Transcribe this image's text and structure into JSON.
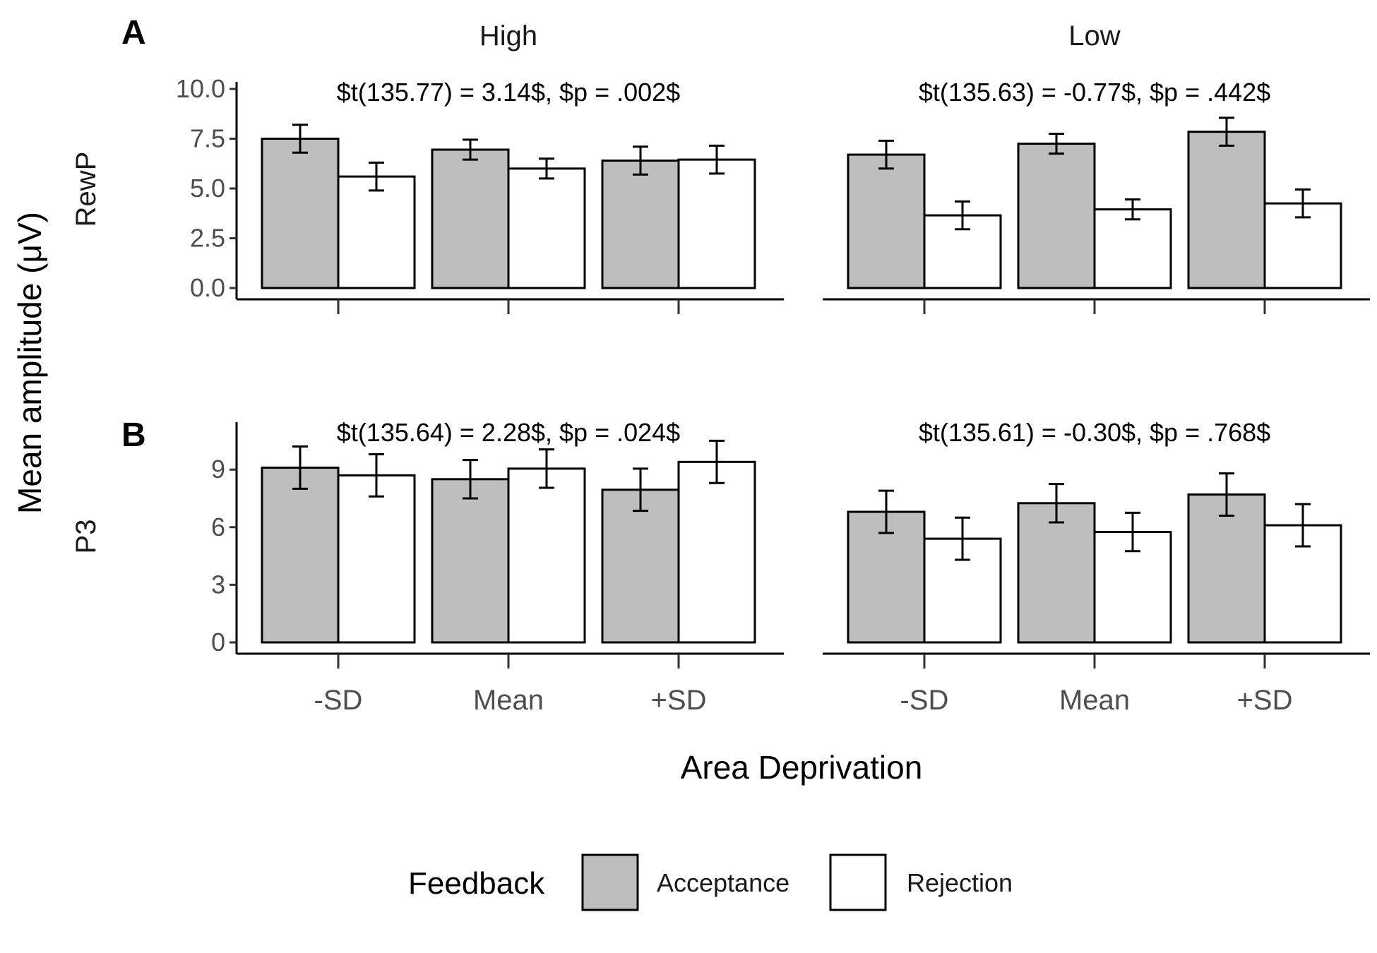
{
  "chart_data": {
    "type": "bar",
    "facets_columns": [
      "High",
      "Low"
    ],
    "facets_rows": [
      {
        "letter": "A",
        "name": "RewP",
        "ylim": [
          0,
          10
        ],
        "ticks": [
          0.0,
          2.5,
          5.0,
          7.5,
          10.0
        ],
        "tick_labels": [
          "0.0",
          "2.5",
          "5.0",
          "7.5",
          "10.0"
        ]
      },
      {
        "letter": "B",
        "name": "P3",
        "ylim": [
          0,
          11
        ],
        "ticks": [
          0,
          3,
          6,
          9
        ],
        "tick_labels": [
          "0",
          "3",
          "6",
          "9"
        ]
      }
    ],
    "categories": [
      "-SD",
      "Mean",
      "+SD"
    ],
    "xlabel": "Area Deprivation",
    "ylabel": "Mean amplitude (μV)",
    "legend": {
      "title": "Feedback",
      "placement": "bottom",
      "items": [
        {
          "name": "Acceptance",
          "color": "#bebebe"
        },
        {
          "name": "Rejection",
          "color": "#ffffff"
        }
      ]
    },
    "annotations": [
      [
        "$t(135.77) = 3.14$, $p = .002$",
        "$t(135.63) = -0.77$, $p = .442$"
      ],
      [
        "$t(135.64) = 2.28$, $p = .024$",
        "$t(135.61) = -0.30$, $p = .768$"
      ]
    ],
    "panels": [
      [
        {
          "series": [
            {
              "name": "Acceptance",
              "values": [
                7.5,
                6.95,
                6.4
              ],
              "errors": [
                0.7,
                0.5,
                0.7
              ]
            },
            {
              "name": "Rejection",
              "values": [
                5.6,
                6.0,
                6.45
              ],
              "errors": [
                0.7,
                0.5,
                0.7
              ]
            }
          ]
        },
        {
          "series": [
            {
              "name": "Acceptance",
              "values": [
                6.7,
                7.25,
                7.85
              ],
              "errors": [
                0.7,
                0.5,
                0.7
              ]
            },
            {
              "name": "Rejection",
              "values": [
                3.65,
                3.95,
                4.25
              ],
              "errors": [
                0.7,
                0.5,
                0.7
              ]
            }
          ]
        }
      ],
      [
        {
          "series": [
            {
              "name": "Acceptance",
              "values": [
                9.1,
                8.5,
                7.95
              ],
              "errors": [
                1.1,
                1.0,
                1.1
              ]
            },
            {
              "name": "Rejection",
              "values": [
                8.7,
                9.05,
                9.4
              ],
              "errors": [
                1.1,
                1.0,
                1.1
              ]
            }
          ]
        },
        {
          "series": [
            {
              "name": "Acceptance",
              "values": [
                6.8,
                7.25,
                7.7
              ],
              "errors": [
                1.1,
                1.0,
                1.1
              ]
            },
            {
              "name": "Rejection",
              "values": [
                5.4,
                5.75,
                6.1
              ],
              "errors": [
                1.1,
                1.0,
                1.1
              ]
            }
          ]
        }
      ]
    ]
  }
}
